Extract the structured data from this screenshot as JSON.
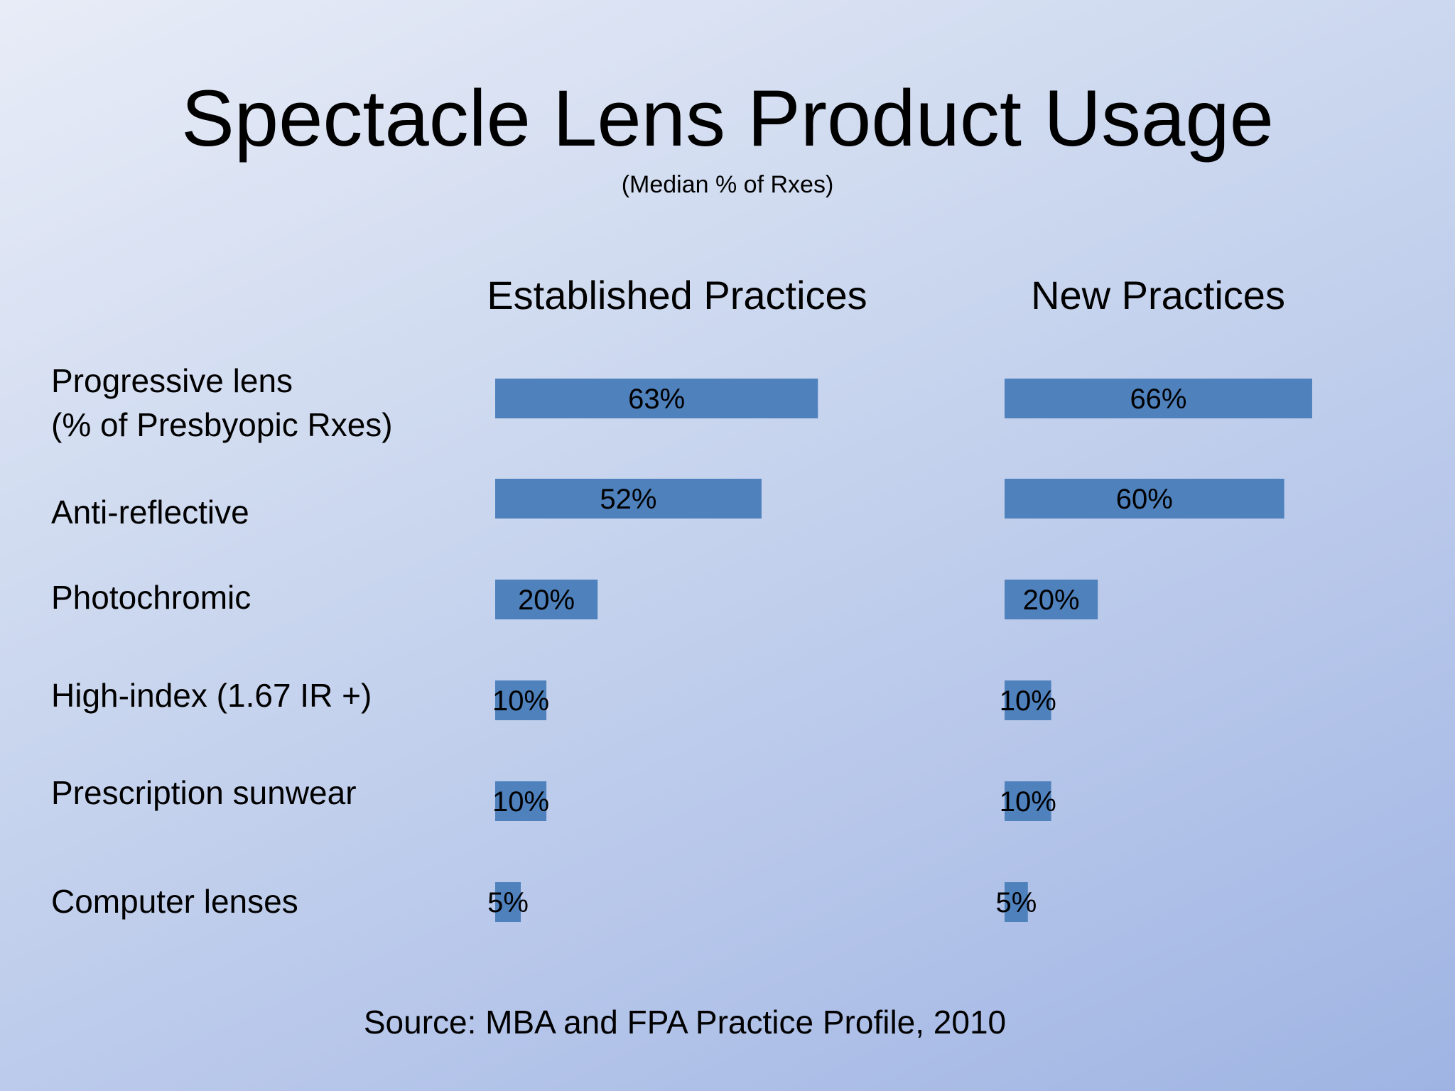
{
  "slide": {
    "title": "Spectacle Lens Product Usage",
    "subtitle": "(Median % of Rxes)",
    "source": "Source: MBA and FPA Practice Profile, 2010",
    "background_colors": [
      "#e8ecf7",
      "#9fb4e3"
    ]
  },
  "chart_data": {
    "type": "bar",
    "orientation": "horizontal",
    "title": "Spectacle Lens Product Usage",
    "subtitle": "(Median % of Rxes)",
    "value_unit": "%",
    "categories": [
      [
        "Progressive lens",
        "(% of Presbyopic Rxes)"
      ],
      [
        "Anti-reflective"
      ],
      [
        "Photochromic"
      ],
      [
        "High-index (1.67 IR +)"
      ],
      [
        "Prescription sunwear"
      ],
      [
        "Computer lenses"
      ]
    ],
    "series": [
      {
        "name": "Established Practices",
        "values": [
          63,
          52,
          20,
          10,
          10,
          5
        ],
        "labels": [
          "63%",
          "52%",
          "20%",
          "10%",
          "10%",
          "5%"
        ],
        "color": "#4f81bd"
      },
      {
        "name": "New Practices",
        "values": [
          66,
          60,
          20,
          10,
          10,
          5
        ],
        "labels": [
          "66%",
          "60%",
          "20%",
          "10%",
          "10%",
          "5%"
        ],
        "color": "#4f81bd"
      }
    ],
    "grid": false,
    "legend": "none"
  }
}
